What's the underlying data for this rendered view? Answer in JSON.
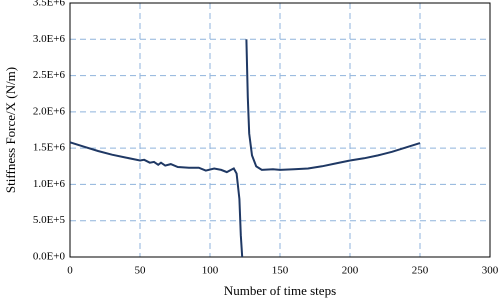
{
  "chart_data": {
    "type": "line",
    "xlabel": "Number of time steps",
    "ylabel": "Stiffness Force/X (N/m)",
    "x": [
      0,
      10,
      20,
      30,
      40,
      50,
      53,
      57,
      60,
      63,
      65,
      68,
      72,
      77,
      85,
      92,
      97,
      103,
      108,
      112,
      115,
      117,
      119,
      121,
      122,
      123,
      null,
      126,
      127,
      128,
      130,
      133,
      137,
      145,
      150,
      160,
      170,
      180,
      190,
      200,
      210,
      220,
      230,
      240,
      250
    ],
    "series": [
      {
        "color": "#1f3864",
        "values": [
          1580000,
          1520000,
          1460000,
          1410000,
          1370000,
          1330000,
          1340000,
          1300000,
          1310000,
          1270000,
          1300000,
          1260000,
          1280000,
          1240000,
          1230000,
          1230000,
          1190000,
          1220000,
          1200000,
          1170000,
          1200000,
          1220000,
          1150000,
          800000,
          300000,
          0,
          null,
          3000000,
          2200000,
          1700000,
          1400000,
          1250000,
          1200000,
          1210000,
          1200000,
          1210000,
          1220000,
          1250000,
          1290000,
          1330000,
          1360000,
          1400000,
          1450000,
          1510000,
          1570000
        ]
      }
    ],
    "xlim": [
      0,
      300
    ],
    "xticks": [
      0,
      50,
      100,
      150,
      200,
      250,
      300
    ],
    "ylim": [
      0,
      3500000
    ],
    "yticks": [
      {
        "value": 0,
        "label": "0.0E+0"
      },
      {
        "value": 500000,
        "label": "5.0E+5"
      },
      {
        "value": 1000000,
        "label": "1.0E+6"
      },
      {
        "value": 1500000,
        "label": "1.5E+6"
      },
      {
        "value": 2000000,
        "label": "2.0E+6"
      },
      {
        "value": 2500000,
        "label": "2.5E+6"
      },
      {
        "value": 3000000,
        "label": "3.0E+6"
      },
      {
        "value": 3500000,
        "label": "3.5E+6"
      }
    ],
    "grid": true,
    "grid_color": "#8fb3dc"
  }
}
